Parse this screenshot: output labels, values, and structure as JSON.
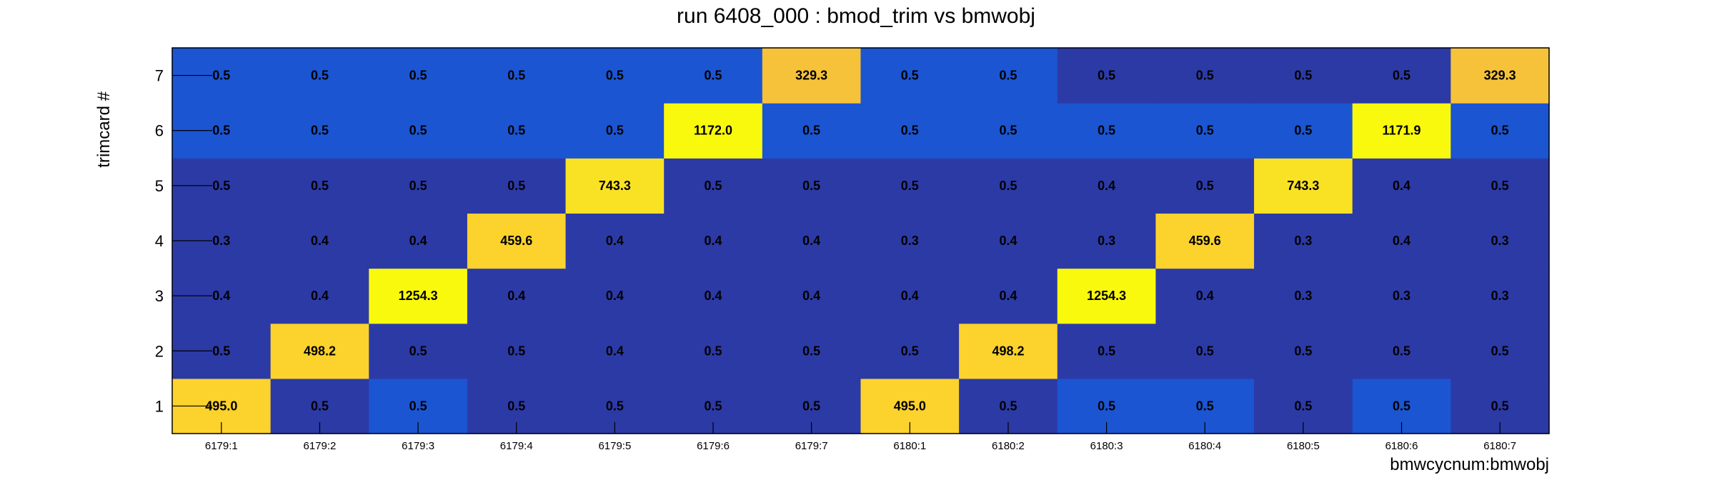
{
  "chart_data": {
    "type": "heatmap",
    "title": "run 6408_000 : bmod_trim vs bmwobj",
    "xlabel": "bmwcycnum:bmwobj",
    "ylabel": "trimcard #",
    "x_categories": [
      "6179:1",
      "6179:2",
      "6179:3",
      "6179:4",
      "6179:5",
      "6179:6",
      "6179:7",
      "6180:1",
      "6180:2",
      "6180:3",
      "6180:4",
      "6180:5",
      "6180:6",
      "6180:7"
    ],
    "y_categories": [
      "1",
      "2",
      "3",
      "4",
      "5",
      "6",
      "7"
    ],
    "values": [
      [
        495.0,
        0.5,
        0.5,
        0.5,
        0.5,
        0.5,
        0.5,
        495.0,
        0.5,
        0.5,
        0.5,
        0.5,
        0.5,
        0.5
      ],
      [
        0.5,
        498.2,
        0.5,
        0.5,
        0.4,
        0.5,
        0.5,
        0.5,
        498.2,
        0.5,
        0.5,
        0.5,
        0.5,
        0.5
      ],
      [
        0.4,
        0.4,
        1254.3,
        0.4,
        0.4,
        0.4,
        0.4,
        0.4,
        0.4,
        1254.3,
        0.4,
        0.3,
        0.3,
        0.3
      ],
      [
        0.3,
        0.4,
        0.4,
        459.6,
        0.4,
        0.4,
        0.4,
        0.3,
        0.4,
        0.3,
        459.6,
        0.3,
        0.4,
        0.3
      ],
      [
        0.5,
        0.5,
        0.5,
        0.5,
        743.3,
        0.5,
        0.5,
        0.5,
        0.5,
        0.4,
        0.5,
        743.3,
        0.4,
        0.5
      ],
      [
        0.5,
        0.5,
        0.5,
        0.5,
        0.5,
        1172.0,
        0.5,
        0.5,
        0.5,
        0.5,
        0.5,
        0.5,
        1171.9,
        0.5
      ],
      [
        0.5,
        0.5,
        0.5,
        0.5,
        0.5,
        0.5,
        329.3,
        0.5,
        0.5,
        0.5,
        0.5,
        0.5,
        0.5,
        329.3
      ]
    ],
    "cell_colors": [
      [
        "#fcd22c",
        "#2c3aa6",
        "#1b55d2",
        "#2c3aa6",
        "#2c3aa6",
        "#2c3aa6",
        "#2c3aa6",
        "#fcd22c",
        "#2c3aa6",
        "#1b55d2",
        "#1b55d2",
        "#2c3aa6",
        "#1b55d2",
        "#2c3aa6"
      ],
      [
        "#2c3aa6",
        "#fcd22c",
        "#2c3aa6",
        "#2c3aa6",
        "#2c3aa6",
        "#2c3aa6",
        "#2c3aa6",
        "#2c3aa6",
        "#fcd22c",
        "#2c3aa6",
        "#2c3aa6",
        "#2c3aa6",
        "#2c3aa6",
        "#2c3aa6"
      ],
      [
        "#2c3aa6",
        "#2c3aa6",
        "#f9f90d",
        "#2c3aa6",
        "#2c3aa6",
        "#2c3aa6",
        "#2c3aa6",
        "#2c3aa6",
        "#2c3aa6",
        "#f9f90d",
        "#2c3aa6",
        "#2c3aa6",
        "#2c3aa6",
        "#2c3aa6"
      ],
      [
        "#2c3aa6",
        "#2c3aa6",
        "#2c3aa6",
        "#fcd22c",
        "#2c3aa6",
        "#2c3aa6",
        "#2c3aa6",
        "#2c3aa6",
        "#2c3aa6",
        "#2c3aa6",
        "#fcd22c",
        "#2c3aa6",
        "#2c3aa6",
        "#2c3aa6"
      ],
      [
        "#2c3aa6",
        "#2c3aa6",
        "#2c3aa6",
        "#2c3aa6",
        "#f9e224",
        "#2c3aa6",
        "#2c3aa6",
        "#2c3aa6",
        "#2c3aa6",
        "#2c3aa6",
        "#2c3aa6",
        "#f9e224",
        "#2c3aa6",
        "#2c3aa6"
      ],
      [
        "#1b55d2",
        "#1b55d2",
        "#1b55d2",
        "#1b55d2",
        "#1b55d2",
        "#f9f90d",
        "#1b55d2",
        "#1b55d2",
        "#1b55d2",
        "#1b55d2",
        "#1b55d2",
        "#1b55d2",
        "#f9f90d",
        "#1b55d2"
      ],
      [
        "#1b55d2",
        "#1b55d2",
        "#1b55d2",
        "#1b55d2",
        "#1b55d2",
        "#1b55d2",
        "#f5c23a",
        "#1b55d2",
        "#1b55d2",
        "#2c3aa6",
        "#2c3aa6",
        "#2c3aa6",
        "#2c3aa6",
        "#f5c23a"
      ]
    ],
    "grid": false,
    "legend": "none"
  }
}
